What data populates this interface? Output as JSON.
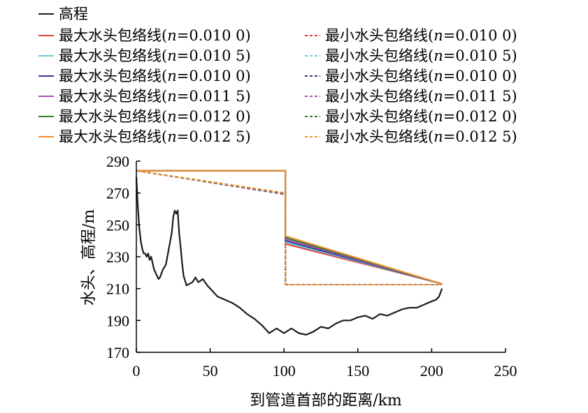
{
  "chart_data": {
    "type": "line",
    "xlabel": "到管道首部的距离/km",
    "ylabel": "水头、高程/m",
    "xlim": [
      0,
      250
    ],
    "ylim": [
      170,
      290
    ],
    "xticks": [
      0,
      50,
      100,
      150,
      200,
      250
    ],
    "yticks": [
      170,
      190,
      210,
      230,
      250,
      270,
      290
    ],
    "grid": false,
    "legend_position": "top",
    "elevation": {
      "name": "高程",
      "color": "#231815",
      "x": [
        0,
        1,
        2,
        3,
        4,
        5,
        6,
        7,
        8,
        9,
        10,
        12,
        14,
        15,
        16,
        18,
        20,
        22,
        24,
        25,
        26,
        27,
        28,
        29,
        30,
        31,
        32,
        34,
        36,
        38,
        40,
        42,
        45,
        48,
        50,
        55,
        60,
        65,
        70,
        75,
        80,
        85,
        88,
        90,
        95,
        100,
        105,
        110,
        115,
        120,
        125,
        130,
        135,
        140,
        145,
        150,
        155,
        160,
        165,
        170,
        175,
        180,
        185,
        190,
        195,
        200,
        203,
        205,
        207
      ],
      "y": [
        280,
        262,
        248,
        240,
        235,
        232,
        232,
        230,
        232,
        228,
        230,
        222,
        218,
        216,
        217,
        222,
        225,
        235,
        245,
        255,
        259,
        257,
        259,
        245,
        236,
        226,
        218,
        212,
        213,
        214,
        217,
        214,
        216,
        212,
        210,
        205,
        203,
        201,
        198,
        194,
        191,
        187,
        184,
        182,
        185,
        182,
        185,
        182,
        181,
        183,
        186,
        185,
        188,
        190,
        190,
        192,
        193,
        191,
        194,
        193,
        195,
        197,
        198,
        198,
        200,
        202,
        203,
        205,
        210
      ]
    },
    "series": [
      {
        "name": "最大水头包络线(n=0.010 0)",
        "label_pre": "最大水头包络线(",
        "n": "0.010 0",
        "color": "#e53935",
        "dash": false,
        "x": [
          0,
          101,
          101,
          207
        ],
        "y": [
          284,
          284,
          238,
          213
        ]
      },
      {
        "name": "最大水头包络线(n=0.010 5)",
        "label_pre": "最大水头包络线(",
        "n": "0.010 5",
        "color": "#6ec6d8",
        "dash": false,
        "x": [
          0,
          101,
          101,
          207
        ],
        "y": [
          284,
          284,
          239,
          213
        ]
      },
      {
        "name": "最大水头包络线(n=0.010 0)",
        "label_pre": "最大水头包络线(",
        "n": "0.010 0",
        "color": "#2e3a8c",
        "dash": false,
        "x": [
          0,
          101,
          101,
          207
        ],
        "y": [
          284,
          284,
          240,
          213
        ]
      },
      {
        "name": "最大水头包络线(n=0.011 5)",
        "label_pre": "最大水头包络线(",
        "n": "0.011 5",
        "color": "#b04fb5",
        "dash": false,
        "x": [
          0,
          101,
          101,
          207
        ],
        "y": [
          284,
          284,
          241,
          213
        ]
      },
      {
        "name": "最大水头包络线(n=0.012 0)",
        "label_pre": "最大水头包络线(",
        "n": "0.012 0",
        "color": "#2e7d32",
        "dash": false,
        "x": [
          0,
          101,
          101,
          207
        ],
        "y": [
          284,
          284,
          242,
          213
        ]
      },
      {
        "name": "最大水头包络线(n=0.012 5)",
        "label_pre": "最大水头包络线(",
        "n": "0.012 5",
        "color": "#f28e2b",
        "dash": false,
        "x": [
          0,
          101,
          101,
          207
        ],
        "y": [
          284,
          284,
          243,
          213
        ]
      },
      {
        "name": "最小水头包络线(n=0.010 0)",
        "label_pre": "最小水头包络线(",
        "n": "0.010 0",
        "color": "#e53935",
        "dash": true,
        "x": [
          0,
          101,
          101,
          207
        ],
        "y": [
          284,
          269,
          212.5,
          212.5
        ]
      },
      {
        "name": "最小水头包络线(n=0.010 5)",
        "label_pre": "最小水头包络线(",
        "n": "0.010 5",
        "color": "#6ec6d8",
        "dash": true,
        "x": [
          0,
          101,
          101,
          207
        ],
        "y": [
          284,
          269.2,
          212.5,
          212.5
        ]
      },
      {
        "name": "最小水头包络线(n=0.010 0)",
        "label_pre": "最小水头包络线(",
        "n": "0.010 0",
        "color": "#2e3a8c",
        "dash": true,
        "x": [
          0,
          101,
          101,
          207
        ],
        "y": [
          284,
          269.4,
          212.5,
          212.5
        ]
      },
      {
        "name": "最小水头包络线(n=0.011 5)",
        "label_pre": "最小水头包络线(",
        "n": "0.011 5",
        "color": "#b04fb5",
        "dash": true,
        "x": [
          0,
          101,
          101,
          207
        ],
        "y": [
          284,
          269.6,
          212.5,
          212.5
        ]
      },
      {
        "name": "最小水头包络线(n=0.012 0)",
        "label_pre": "最小水头包络线(",
        "n": "0.012 0",
        "color": "#2e7d32",
        "dash": true,
        "x": [
          0,
          101,
          101,
          207
        ],
        "y": [
          284,
          269.8,
          212.5,
          212.5
        ]
      },
      {
        "name": "最小水头包络线(n=0.012 5)",
        "label_pre": "最小水头包络线(",
        "n": "0.012 5",
        "color": "#f28e2b",
        "dash": true,
        "x": [
          0,
          101,
          101,
          207
        ],
        "y": [
          284,
          270,
          212.5,
          212.5
        ]
      }
    ]
  }
}
